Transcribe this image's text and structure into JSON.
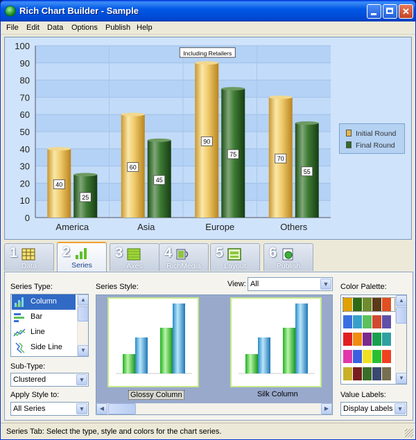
{
  "window": {
    "title": "Rich Chart Builder - Sample"
  },
  "menu": {
    "items": [
      "File",
      "Edit",
      "Data",
      "Options",
      "Publish",
      "Help"
    ]
  },
  "chart_data": {
    "type": "bar",
    "categories": [
      "America",
      "Asia",
      "Europe",
      "Others"
    ],
    "series": [
      {
        "name": "Initial Round",
        "values": [
          40,
          60,
          90,
          70
        ],
        "color": "#e3b44a"
      },
      {
        "name": "Final Round",
        "values": [
          25,
          45,
          75,
          55
        ],
        "color": "#2f6a26"
      }
    ],
    "ylim": [
      0,
      100
    ],
    "yticks": [
      0,
      10,
      20,
      30,
      40,
      50,
      60,
      70,
      80,
      90,
      100
    ],
    "grid": true,
    "legend_position": "right",
    "annotation": {
      "text": "Including Retailers",
      "category": "Europe"
    },
    "title": "",
    "xlabel": "",
    "ylabel": ""
  },
  "tabs": [
    {
      "num": "1",
      "label": "Data",
      "icon": "table-grid-icon"
    },
    {
      "num": "2",
      "label": "Series",
      "icon": "bar-chart-icon"
    },
    {
      "num": "3",
      "label": "Axes",
      "icon": "axes-grid-icon"
    },
    {
      "num": "4",
      "label": "RichMedia",
      "icon": "film-sound-icon"
    },
    {
      "num": "5",
      "label": "Layout",
      "icon": "layout-icon"
    },
    {
      "num": "6",
      "label": "Publish",
      "icon": "globe-page-icon"
    }
  ],
  "series_panel": {
    "series_type_label": "Series Type:",
    "series_types": [
      "Column",
      "Bar",
      "Line",
      "Side Line"
    ],
    "selected_type": "Column",
    "sub_type_label": "Sub-Type:",
    "sub_type_value": "Clustered",
    "apply_label": "Apply Style to:",
    "apply_value": "All Series",
    "series_style_label": "Series Style:",
    "view_label": "View:",
    "view_value": "All",
    "styles": [
      {
        "label": "Glossy Column"
      },
      {
        "label": "Silk Column"
      }
    ],
    "selected_style": "Glossy Column",
    "palette_label": "Color Palette:",
    "palettes": [
      [
        "#e0a000",
        "#2e6a14",
        "#6e8c2e",
        "#5a3a18",
        "#e05020"
      ],
      [
        "#3a6ee0",
        "#38a0c8",
        "#5cc05c",
        "#d04a30",
        "#6050a8"
      ],
      [
        "#e02020",
        "#f08c10",
        "#7a2a8a",
        "#18a050",
        "#30a0a0"
      ],
      [
        "#e038a8",
        "#3a60e0",
        "#f0e020",
        "#28c030",
        "#f04020"
      ],
      [
        "#c8b028",
        "#781e1e",
        "#3a6e28",
        "#3a4870",
        "#786e50"
      ]
    ],
    "value_labels_label": "Value Labels:",
    "value_labels_value": "Display Labels"
  },
  "status": {
    "text": "Series Tab: Select the type, style and colors for the chart series."
  }
}
